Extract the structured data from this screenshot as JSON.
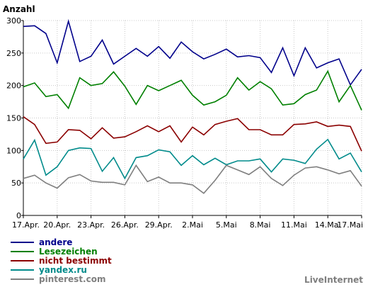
{
  "chart_data": {
    "type": "line",
    "ylabel": "Anzahl",
    "ylim": [
      0,
      300
    ],
    "yticks": [
      0,
      50,
      100,
      150,
      200,
      250,
      300
    ],
    "x": [
      "17.Apr.",
      "18.Apr.",
      "19.Apr.",
      "20.Apr.",
      "21.Apr.",
      "22.Apr.",
      "23.Apr.",
      "24.Apr.",
      "25.Apr.",
      "26.Apr.",
      "27.Apr.",
      "28.Apr.",
      "29.Apr.",
      "30.Apr.",
      "1.Mai",
      "2.Mai",
      "3.Mai",
      "4.Mai",
      "5.Mai",
      "6.Mai",
      "7.Mai",
      "8.Mai",
      "9.Mai",
      "10.Mai",
      "11.Mai",
      "12.Mai",
      "13.Mai",
      "14.Mai",
      "15.Mai",
      "16.Mai",
      "17.Mai"
    ],
    "xtick_labels": [
      "17.Apr.",
      "20.Apr.",
      "23.Apr.",
      "26.Apr.",
      "29.Apr.",
      "2.Mai",
      "5.Mai",
      "8.Mai",
      "11.Mai",
      "14.Mai",
      "17.Mai"
    ],
    "xtick_every": 3,
    "grid": true,
    "series": [
      {
        "name": "andere",
        "color": "#00008b",
        "values": [
          291,
          292,
          280,
          235,
          299,
          237,
          245,
          270,
          233,
          245,
          257,
          245,
          260,
          242,
          267,
          252,
          241,
          248,
          256,
          244,
          246,
          243,
          220,
          258,
          215,
          258,
          227,
          235,
          241,
          201,
          225
        ]
      },
      {
        "name": "Lesezeichen",
        "color": "#008000",
        "values": [
          198,
          204,
          183,
          186,
          165,
          212,
          200,
          203,
          221,
          199,
          171,
          200,
          192,
          200,
          208,
          185,
          170,
          175,
          185,
          212,
          193,
          206,
          195,
          170,
          172,
          186,
          193,
          222,
          175,
          200,
          162
        ]
      },
      {
        "name": "nicht bestimmt",
        "color": "#8b0000",
        "values": [
          152,
          140,
          111,
          113,
          132,
          131,
          118,
          135,
          119,
          121,
          129,
          138,
          129,
          138,
          113,
          136,
          124,
          140,
          145,
          149,
          132,
          132,
          124,
          124,
          140,
          141,
          144,
          137,
          139,
          137,
          99
        ]
      },
      {
        "name": "yandex.ru",
        "color": "#008b8b",
        "values": [
          87,
          116,
          62,
          75,
          100,
          104,
          103,
          68,
          89,
          57,
          89,
          92,
          101,
          98,
          77,
          92,
          78,
          88,
          78,
          84,
          84,
          87,
          67,
          87,
          85,
          80,
          102,
          117,
          87,
          96,
          67
        ]
      },
      {
        "name": "pinterest.com",
        "color": "#7f7f7f",
        "values": [
          57,
          62,
          50,
          42,
          58,
          63,
          53,
          51,
          51,
          47,
          77,
          52,
          59,
          50,
          50,
          47,
          34,
          54,
          77,
          70,
          63,
          75,
          57,
          46,
          62,
          73,
          75,
          70,
          64,
          69,
          45
        ]
      }
    ]
  },
  "branding": {
    "text": "LiveInternet"
  }
}
